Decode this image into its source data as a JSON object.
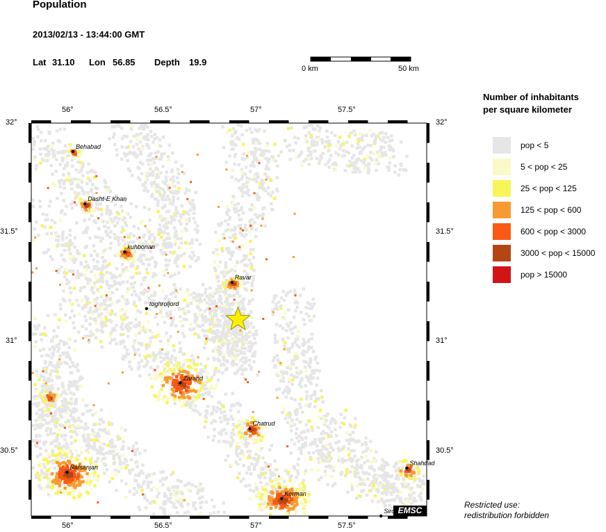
{
  "header": {
    "title": "Population",
    "datetime": "2013/02/13 - 13:44:00 GMT",
    "lat_label": "Lat",
    "lat": "31.10",
    "lon_label": "Lon",
    "lon": "56.85",
    "depth_label": "Depth",
    "depth": "19.9"
  },
  "scale_bar": {
    "start_label": "0 km",
    "end_label": "50 km"
  },
  "axes": {
    "lon_ticks": [
      "56°",
      "56.5°",
      "57°",
      "57.5°"
    ],
    "lat_ticks": [
      "32°",
      "31.5°",
      "31°",
      "30.5°"
    ]
  },
  "epicenter": {
    "lat": 31.1,
    "lon": 56.85,
    "marker": "star-icon",
    "color": "#ffee00"
  },
  "cities": [
    {
      "name": "Behabad",
      "lat": 31.87,
      "lon": 56.02
    },
    {
      "name": "Dasht-E Khan",
      "lat": 31.63,
      "lon": 56.08
    },
    {
      "name": "kuhbonan",
      "lat": 31.41,
      "lon": 56.28
    },
    {
      "name": "Ravar",
      "lat": 31.27,
      "lon": 56.82
    },
    {
      "name": "toghroljord",
      "lat": 31.15,
      "lon": 56.39
    },
    {
      "name": "Zarand",
      "lat": 30.81,
      "lon": 56.56
    },
    {
      "name": "Chatrud",
      "lat": 30.6,
      "lon": 56.91
    },
    {
      "name": "Rafsanjan",
      "lat": 30.4,
      "lon": 55.99
    },
    {
      "name": "Kerman",
      "lat": 30.28,
      "lon": 57.07
    },
    {
      "name": "Shahdad",
      "lat": 30.42,
      "lon": 57.7
    },
    {
      "name": "Sirch",
      "lat": 30.2,
      "lon": 57.57
    }
  ],
  "legend": {
    "title_line1": "Number of inhabitants",
    "title_line2": "per square kilometer",
    "items": [
      {
        "label": "pop < 5",
        "color": "#e6e6e6"
      },
      {
        "label": "5 < pop < 25",
        "color": "#fafac8"
      },
      {
        "label": "25 < pop < 125",
        "color": "#f8f55a"
      },
      {
        "label": "125 < pop < 600",
        "color": "#f89a32"
      },
      {
        "label": "600 < pop < 3000",
        "color": "#f85a14"
      },
      {
        "label": "3000 < pop < 15000",
        "color": "#b44614"
      },
      {
        "label": "pop > 15000",
        "color": "#d21414"
      }
    ]
  },
  "footer": {
    "restricted_line1": "Restricted use:",
    "restricted_line2": "redistribution forbidden",
    "brand": "EMSC"
  }
}
